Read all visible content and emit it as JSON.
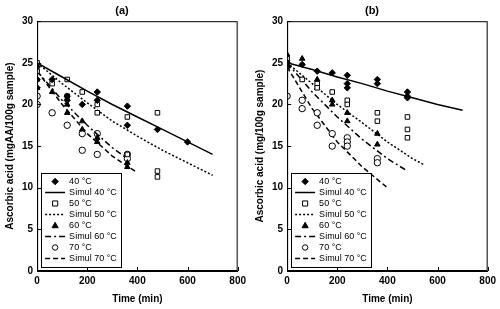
{
  "chart_data": [
    {
      "type": "scatter",
      "title": "(a)",
      "x_label": "Time (min)",
      "y_label": "Ascorbic acid (mgAA/100g sample)",
      "xlim": [
        0,
        800
      ],
      "xticks": [
        0,
        200,
        400,
        600,
        800
      ],
      "ylim": [
        0,
        30
      ],
      "yticks": [
        0,
        5,
        10,
        15,
        20,
        25,
        30
      ],
      "grid": false,
      "legend": "lower left",
      "series": [
        {
          "name": "40 °C",
          "type": "scatter",
          "color": "#000000",
          "marker": "diamond",
          "x": [
            0,
            0,
            0,
            60,
            120,
            120,
            180,
            240,
            240,
            360,
            360,
            480,
            600
          ],
          "values": [
            24.5,
            23,
            22,
            23,
            21,
            20.5,
            20,
            21.5,
            20.5,
            19.8,
            17.5,
            17,
            15.5
          ]
        },
        {
          "name": "Simul 40 °C",
          "type": "line",
          "color": "#000000",
          "line_style": "solid",
          "x": [
            0,
            100,
            200,
            300,
            400,
            500,
            600,
            700
          ],
          "values": [
            25,
            23.3,
            21.6,
            20,
            18.5,
            17,
            15.5,
            14
          ]
        },
        {
          "name": "50 °C",
          "type": "scatter",
          "color": "#000000",
          "marker": "square-open",
          "x": [
            0,
            0,
            60,
            120,
            120,
            180,
            240,
            240,
            360,
            360,
            480,
            480,
            480
          ],
          "values": [
            25,
            24,
            22.5,
            23,
            21,
            21.5,
            20,
            19,
            18.5,
            14,
            19,
            12,
            11.3
          ]
        },
        {
          "name": "Simul 50 °C",
          "type": "line",
          "color": "#000000",
          "line_style": "dotted",
          "x": [
            0,
            100,
            200,
            300,
            400,
            500,
            600,
            700
          ],
          "values": [
            25,
            22.5,
            20.2,
            18,
            16.2,
            14.5,
            13,
            11.5
          ]
        },
        {
          "name": "60 °C",
          "type": "scatter",
          "color": "#000000",
          "marker": "triangle",
          "x": [
            0,
            0,
            60,
            120,
            120,
            180,
            180,
            240,
            240,
            360,
            360
          ],
          "values": [
            23,
            22,
            21.5,
            20,
            19,
            17,
            18,
            16,
            15.5,
            13,
            12.5
          ]
        },
        {
          "name": "Simul 60 °C",
          "type": "line",
          "color": "#000000",
          "line_style": "dashdot",
          "x": [
            0,
            100,
            200,
            300,
            360
          ],
          "values": [
            24,
            20.5,
            17.5,
            14.8,
            13.5
          ]
        },
        {
          "name": "70 °C",
          "type": "scatter",
          "color": "#000000",
          "marker": "circle-open",
          "x": [
            0,
            0,
            60,
            120,
            180,
            180,
            240,
            240,
            360,
            360
          ],
          "values": [
            21,
            20,
            19,
            17.5,
            16.5,
            14.5,
            14,
            16.5,
            14,
            13.5
          ]
        },
        {
          "name": "Simul 70 °C",
          "type": "line",
          "color": "#000000",
          "line_style": "dashed",
          "x": [
            0,
            100,
            200,
            300,
            400
          ],
          "values": [
            24,
            20,
            16.5,
            13.8,
            11.8
          ]
        }
      ]
    },
    {
      "type": "scatter",
      "title": "(b)",
      "x_label": "Time (min)",
      "y_label": "Ascorbic acid (mg/100g sample)",
      "xlim": [
        0,
        800
      ],
      "xticks": [
        0,
        200,
        400,
        600,
        800
      ],
      "ylim": [
        0,
        30
      ],
      "yticks": [
        0,
        5,
        10,
        15,
        20,
        25,
        30
      ],
      "grid": false,
      "legend": "lower left",
      "series": [
        {
          "name": "40 °C",
          "type": "scatter",
          "color": "#000000",
          "marker": "diamond",
          "x": [
            0,
            0,
            60,
            120,
            180,
            240,
            240,
            240,
            360,
            360,
            480,
            480,
            480
          ],
          "values": [
            25,
            24.5,
            24.8,
            24,
            23.8,
            23.5,
            22.5,
            22,
            23,
            22.5,
            21.5,
            21,
            20.8
          ]
        },
        {
          "name": "Simul 40 °C",
          "type": "line",
          "color": "#000000",
          "line_style": "solid",
          "x": [
            0,
            100,
            200,
            300,
            400,
            500,
            600,
            700
          ],
          "values": [
            25,
            24.2,
            23.3,
            22.5,
            21.6,
            20.8,
            20,
            19.3
          ]
        },
        {
          "name": "50 °C",
          "type": "scatter",
          "color": "#000000",
          "marker": "square-open",
          "x": [
            0,
            0,
            60,
            120,
            120,
            180,
            240,
            240,
            360,
            360,
            480,
            480,
            480
          ],
          "values": [
            25.5,
            25,
            23,
            22.5,
            22,
            21.5,
            20.5,
            20,
            19,
            18,
            18.5,
            17,
            16
          ]
        },
        {
          "name": "Simul 50 °C",
          "type": "line",
          "color": "#000000",
          "line_style": "dotted",
          "x": [
            0,
            100,
            200,
            300,
            400,
            500,
            550
          ],
          "values": [
            25,
            22.5,
            20,
            17.8,
            15.5,
            13.5,
            12.7
          ]
        },
        {
          "name": "60 °C",
          "type": "scatter",
          "color": "#000000",
          "marker": "triangle",
          "x": [
            0,
            0,
            60,
            120,
            120,
            180,
            180,
            240,
            240,
            360,
            360
          ],
          "values": [
            26,
            25.5,
            25.5,
            23,
            22,
            20.5,
            20,
            19,
            18,
            16.5,
            15.2
          ]
        },
        {
          "name": "Simul 60 °C",
          "type": "line",
          "color": "#000000",
          "line_style": "dashdot",
          "x": [
            0,
            100,
            200,
            300,
            400,
            480
          ],
          "values": [
            25,
            21.5,
            18.5,
            15.8,
            13.5,
            12
          ]
        },
        {
          "name": "70 °C",
          "type": "scatter",
          "color": "#000000",
          "marker": "circle-open",
          "x": [
            0,
            0,
            60,
            60,
            120,
            120,
            180,
            180,
            240,
            240,
            240,
            360,
            360
          ],
          "values": [
            21,
            24.5,
            20.5,
            19.5,
            19,
            17.5,
            16.5,
            15,
            16,
            15.5,
            15,
            13.5,
            13
          ]
        },
        {
          "name": "Simul 70 °C",
          "type": "line",
          "color": "#000000",
          "line_style": "dashed",
          "x": [
            0,
            100,
            200,
            300,
            400
          ],
          "values": [
            24.5,
            19.5,
            15.5,
            12.5,
            10
          ]
        }
      ]
    }
  ]
}
